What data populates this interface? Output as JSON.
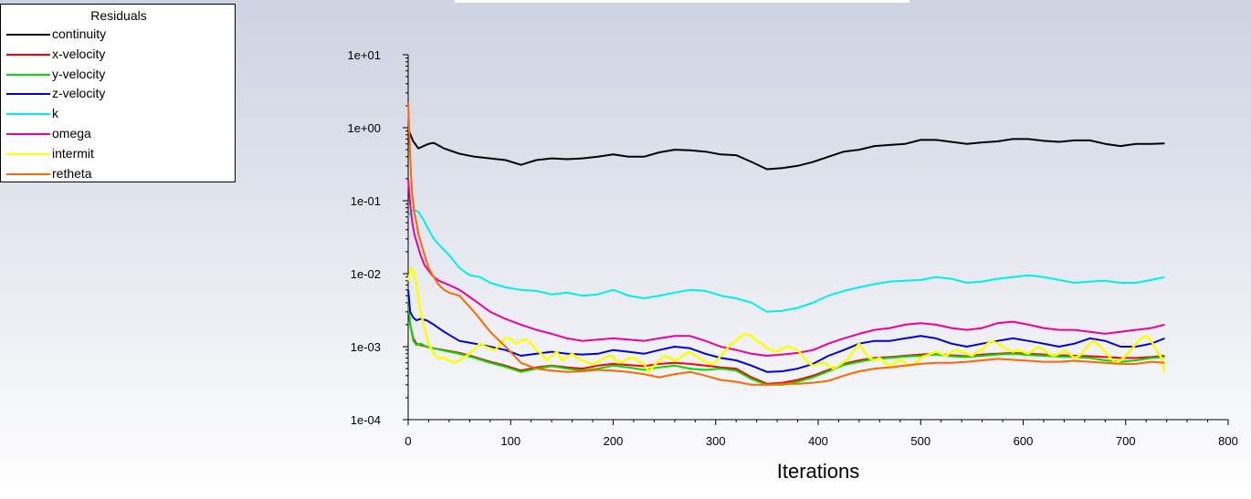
{
  "chart_data": {
    "type": "line",
    "title": "Residuals",
    "xlabel": "Iterations",
    "ylabel": "",
    "xlim": [
      0,
      800
    ],
    "ylim": [
      0.0001,
      10
    ],
    "yscale": "log",
    "x_ticks": [
      0,
      100,
      200,
      300,
      400,
      500,
      600,
      700,
      800
    ],
    "y_ticks": [
      {
        "value": 10,
        "label": "1e+01"
      },
      {
        "value": 1,
        "label": "1e+00"
      },
      {
        "value": 0.1,
        "label": "1e-01"
      },
      {
        "value": 0.01,
        "label": "1e-02"
      },
      {
        "value": 0.001,
        "label": "1e-03"
      },
      {
        "value": 0.0001,
        "label": "1e-04"
      }
    ],
    "legend_position": "top-left",
    "series": [
      {
        "name": "continuity",
        "color": "#000000",
        "x": [
          0,
          5,
          10,
          15,
          20,
          25,
          35,
          50,
          65,
          80,
          95,
          110,
          125,
          140,
          155,
          170,
          185,
          200,
          215,
          230,
          245,
          260,
          275,
          290,
          305,
          320,
          335,
          350,
          365,
          380,
          395,
          410,
          425,
          440,
          455,
          470,
          485,
          500,
          515,
          530,
          545,
          560,
          575,
          590,
          605,
          620,
          635,
          650,
          665,
          680,
          695,
          710,
          725,
          738
        ],
        "y": [
          0.95,
          0.65,
          0.52,
          0.56,
          0.6,
          0.62,
          0.52,
          0.44,
          0.4,
          0.38,
          0.36,
          0.31,
          0.36,
          0.38,
          0.37,
          0.38,
          0.4,
          0.43,
          0.4,
          0.4,
          0.46,
          0.5,
          0.49,
          0.47,
          0.43,
          0.42,
          0.34,
          0.27,
          0.28,
          0.3,
          0.34,
          0.4,
          0.47,
          0.5,
          0.56,
          0.58,
          0.6,
          0.68,
          0.68,
          0.64,
          0.6,
          0.63,
          0.65,
          0.7,
          0.7,
          0.66,
          0.64,
          0.67,
          0.67,
          0.6,
          0.56,
          0.6,
          0.6,
          0.61
        ]
      },
      {
        "name": "x-velocity",
        "color": "#ff0000",
        "x": [
          0,
          2,
          5,
          8,
          12,
          18,
          25,
          35,
          50,
          65,
          80,
          95,
          110,
          125,
          140,
          155,
          170,
          185,
          200,
          215,
          230,
          245,
          260,
          275,
          290,
          305,
          320,
          335,
          350,
          365,
          380,
          395,
          410,
          425,
          440,
          455,
          470,
          485,
          500,
          515,
          530,
          545,
          560,
          575,
          590,
          605,
          620,
          635,
          650,
          665,
          680,
          695,
          710,
          725,
          738
        ],
        "y": [
          0.004,
          0.002,
          0.0013,
          0.0011,
          0.00105,
          0.001,
          0.00095,
          0.0009,
          0.00082,
          0.00072,
          0.00062,
          0.00055,
          0.00047,
          0.00052,
          0.00055,
          0.00052,
          0.0005,
          0.00055,
          0.00058,
          0.00056,
          0.00054,
          0.00058,
          0.0006,
          0.00058,
          0.00055,
          0.00052,
          0.0005,
          0.00038,
          0.00031,
          0.00032,
          0.00035,
          0.0004,
          0.00048,
          0.00058,
          0.00065,
          0.0007,
          0.00072,
          0.00075,
          0.00078,
          0.0008,
          0.00076,
          0.00074,
          0.00078,
          0.0008,
          0.00082,
          0.0008,
          0.00078,
          0.00076,
          0.00075,
          0.00074,
          0.00072,
          0.0007,
          0.0007,
          0.00072,
          0.00075
        ]
      },
      {
        "name": "y-velocity",
        "color": "#00dd00",
        "x": [
          0,
          2,
          5,
          8,
          12,
          18,
          25,
          35,
          50,
          65,
          80,
          95,
          110,
          125,
          140,
          155,
          170,
          185,
          200,
          215,
          230,
          245,
          260,
          275,
          290,
          305,
          320,
          335,
          350,
          365,
          380,
          395,
          410,
          425,
          440,
          455,
          470,
          485,
          500,
          515,
          530,
          545,
          560,
          575,
          590,
          605,
          620,
          635,
          650,
          665,
          680,
          695,
          710,
          725,
          738
        ],
        "y": [
          0.005,
          0.002,
          0.0012,
          0.00105,
          0.0011,
          0.001,
          0.00095,
          0.00088,
          0.0008,
          0.0007,
          0.0006,
          0.00053,
          0.00045,
          0.0005,
          0.00054,
          0.0005,
          0.00047,
          0.0005,
          0.00055,
          0.00052,
          0.00048,
          0.00052,
          0.00055,
          0.0005,
          0.00048,
          0.0005,
          0.00047,
          0.00036,
          0.0003,
          0.0003,
          0.00033,
          0.00038,
          0.00046,
          0.00056,
          0.00062,
          0.00068,
          0.0007,
          0.00073,
          0.00075,
          0.00078,
          0.00074,
          0.00072,
          0.00075,
          0.00078,
          0.0008,
          0.00077,
          0.00075,
          0.00073,
          0.00072,
          0.0007,
          0.00065,
          0.00062,
          0.00065,
          0.0007,
          0.00072
        ]
      },
      {
        "name": "z-velocity",
        "color": "#0000dd",
        "x": [
          0,
          2,
          5,
          8,
          12,
          18,
          25,
          35,
          50,
          65,
          80,
          95,
          110,
          125,
          140,
          155,
          170,
          185,
          200,
          215,
          230,
          245,
          260,
          275,
          290,
          305,
          320,
          335,
          350,
          365,
          380,
          395,
          410,
          425,
          440,
          455,
          470,
          485,
          500,
          515,
          530,
          545,
          560,
          575,
          590,
          605,
          620,
          635,
          650,
          665,
          680,
          695,
          710,
          725,
          738
        ],
        "y": [
          0.006,
          0.003,
          0.0025,
          0.0023,
          0.0024,
          0.0023,
          0.002,
          0.0016,
          0.0012,
          0.0011,
          0.001,
          0.0009,
          0.00075,
          0.0008,
          0.00085,
          0.0008,
          0.00078,
          0.0008,
          0.0009,
          0.00085,
          0.0008,
          0.0009,
          0.001,
          0.00095,
          0.0008,
          0.0007,
          0.00065,
          0.00055,
          0.00045,
          0.00046,
          0.0005,
          0.00058,
          0.00075,
          0.0009,
          0.0011,
          0.0012,
          0.0012,
          0.0013,
          0.0014,
          0.0013,
          0.0011,
          0.001,
          0.0011,
          0.0012,
          0.0013,
          0.0012,
          0.0011,
          0.001,
          0.0011,
          0.0013,
          0.0012,
          0.001,
          0.001,
          0.0011,
          0.0013
        ]
      },
      {
        "name": "k",
        "color": "#00eeee",
        "x": [
          0,
          3,
          6,
          10,
          15,
          20,
          25,
          30,
          40,
          50,
          60,
          70,
          80,
          95,
          110,
          125,
          140,
          155,
          170,
          185,
          200,
          215,
          230,
          245,
          260,
          275,
          290,
          305,
          320,
          335,
          350,
          365,
          380,
          395,
          410,
          425,
          440,
          455,
          470,
          485,
          500,
          515,
          530,
          545,
          560,
          575,
          590,
          605,
          620,
          635,
          650,
          665,
          680,
          695,
          710,
          725,
          738
        ],
        "y": [
          0.06,
          0.07,
          0.075,
          0.07,
          0.055,
          0.04,
          0.03,
          0.025,
          0.018,
          0.012,
          0.0095,
          0.009,
          0.0075,
          0.0065,
          0.006,
          0.0058,
          0.0052,
          0.0055,
          0.005,
          0.0052,
          0.006,
          0.005,
          0.0046,
          0.005,
          0.0055,
          0.006,
          0.0058,
          0.005,
          0.0046,
          0.004,
          0.003,
          0.0031,
          0.0034,
          0.004,
          0.005,
          0.0058,
          0.0065,
          0.0072,
          0.0078,
          0.008,
          0.0082,
          0.009,
          0.0085,
          0.0075,
          0.0078,
          0.0085,
          0.009,
          0.0095,
          0.009,
          0.0082,
          0.0075,
          0.0078,
          0.008,
          0.0075,
          0.0075,
          0.0082,
          0.009
        ]
      },
      {
        "name": "omega",
        "color": "#ee0099",
        "x": [
          0,
          2,
          4,
          6,
          9,
          12,
          16,
          20,
          25,
          30,
          40,
          50,
          60,
          70,
          80,
          95,
          110,
          125,
          140,
          155,
          170,
          185,
          200,
          215,
          230,
          245,
          260,
          275,
          290,
          305,
          320,
          335,
          350,
          365,
          380,
          395,
          410,
          425,
          440,
          455,
          470,
          485,
          500,
          515,
          530,
          545,
          560,
          575,
          590,
          605,
          620,
          635,
          650,
          665,
          680,
          695,
          710,
          725,
          738
        ],
        "y": [
          0.2,
          0.09,
          0.05,
          0.035,
          0.025,
          0.018,
          0.013,
          0.011,
          0.009,
          0.008,
          0.007,
          0.006,
          0.0048,
          0.0038,
          0.003,
          0.0024,
          0.002,
          0.0017,
          0.0015,
          0.0013,
          0.0012,
          0.00125,
          0.0013,
          0.00125,
          0.0012,
          0.0013,
          0.0014,
          0.0014,
          0.0012,
          0.001,
          0.0009,
          0.0008,
          0.00075,
          0.00078,
          0.00082,
          0.0009,
          0.0011,
          0.0013,
          0.0015,
          0.0017,
          0.0018,
          0.002,
          0.0021,
          0.002,
          0.0018,
          0.0017,
          0.0018,
          0.0021,
          0.0022,
          0.002,
          0.0018,
          0.0017,
          0.0017,
          0.0016,
          0.0015,
          0.0016,
          0.0017,
          0.0018,
          0.002
        ]
      },
      {
        "name": "intermit",
        "color": "#ffff00",
        "x": [
          0,
          3,
          6,
          9,
          12,
          16,
          20,
          25,
          30,
          35,
          40,
          45,
          50,
          55,
          60,
          65,
          70,
          75,
          80,
          85,
          90,
          95,
          100,
          105,
          110,
          115,
          120,
          125,
          130,
          135,
          140,
          145,
          150,
          155,
          160,
          165,
          170,
          175,
          180,
          185,
          190,
          195,
          200,
          205,
          210,
          215,
          220,
          225,
          230,
          235,
          240,
          245,
          250,
          255,
          260,
          265,
          270,
          275,
          280,
          285,
          290,
          295,
          300,
          305,
          310,
          315,
          320,
          325,
          330,
          335,
          340,
          345,
          350,
          355,
          360,
          365,
          370,
          375,
          380,
          385,
          390,
          395,
          400,
          405,
          410,
          415,
          420,
          425,
          430,
          435,
          440,
          445,
          450,
          455,
          460,
          465,
          470,
          475,
          480,
          485,
          490,
          495,
          500,
          505,
          510,
          515,
          520,
          525,
          530,
          535,
          540,
          545,
          550,
          555,
          560,
          565,
          570,
          575,
          580,
          585,
          590,
          595,
          600,
          605,
          610,
          615,
          620,
          625,
          630,
          635,
          640,
          645,
          650,
          655,
          660,
          665,
          670,
          675,
          680,
          685,
          690,
          695,
          700,
          705,
          710,
          715,
          720,
          725,
          730,
          735,
          738
        ],
        "y": [
          0.008,
          0.012,
          0.01,
          0.006,
          0.003,
          0.0018,
          0.0011,
          0.0008,
          0.0007,
          0.0007,
          0.00065,
          0.0006,
          0.00065,
          0.00072,
          0.0008,
          0.00095,
          0.0011,
          0.001,
          0.00095,
          0.0009,
          0.0011,
          0.0013,
          0.0013,
          0.0011,
          0.0012,
          0.00125,
          0.0011,
          0.0009,
          0.0008,
          0.00065,
          0.00075,
          0.00085,
          0.00065,
          0.00072,
          0.0008,
          0.0007,
          0.00065,
          0.0006,
          0.00058,
          0.00062,
          0.00068,
          0.00075,
          0.00072,
          0.0006,
          0.00062,
          0.0007,
          0.0007,
          0.00062,
          0.00058,
          0.00045,
          0.00055,
          0.00065,
          0.00075,
          0.0007,
          0.00065,
          0.0007,
          0.0008,
          0.00085,
          0.00075,
          0.00068,
          0.00062,
          0.00058,
          0.00062,
          0.00075,
          0.0009,
          0.0011,
          0.0012,
          0.0014,
          0.0015,
          0.0014,
          0.0012,
          0.0011,
          0.00095,
          0.0009,
          0.00085,
          0.00095,
          0.001,
          0.00095,
          0.0009,
          0.00075,
          0.0006,
          0.00055,
          0.00058,
          0.00062,
          0.00055,
          0.0005,
          0.00055,
          0.00062,
          0.0007,
          0.0009,
          0.0011,
          0.00085,
          0.0007,
          0.00065,
          0.0007,
          0.0006,
          0.00055,
          0.0006,
          0.00065,
          0.0006,
          0.00055,
          0.0006,
          0.0007,
          0.00075,
          0.0008,
          0.00085,
          0.0008,
          0.00075,
          0.00085,
          0.0009,
          0.00085,
          0.0008,
          0.00075,
          0.00085,
          0.0009,
          0.0011,
          0.0012,
          0.0011,
          0.001,
          0.0009,
          0.00085,
          0.0009,
          0.00085,
          0.0008,
          0.0009,
          0.001,
          0.0009,
          0.0008,
          0.00075,
          0.0008,
          0.0009,
          0.0008,
          0.0007,
          0.00075,
          0.0009,
          0.0011,
          0.0012,
          0.001,
          0.00085,
          0.0007,
          0.0006,
          0.00065,
          0.00075,
          0.0009,
          0.0011,
          0.0013,
          0.0014,
          0.0012,
          0.0009,
          0.0007,
          0.00045
        ]
      },
      {
        "name": "retheta",
        "color": "#ff6600",
        "x": [
          0,
          1,
          2,
          3,
          4,
          6,
          8,
          10,
          13,
          16,
          20,
          25,
          30,
          35,
          40,
          50,
          60,
          70,
          80,
          95,
          110,
          125,
          140,
          155,
          170,
          185,
          200,
          215,
          230,
          245,
          260,
          275,
          290,
          305,
          320,
          335,
          350,
          365,
          380,
          395,
          410,
          425,
          440,
          455,
          470,
          485,
          500,
          515,
          530,
          545,
          560,
          575,
          590,
          605,
          620,
          635,
          650,
          665,
          680,
          695,
          710,
          725,
          738
        ],
        "y": [
          2.2,
          0.9,
          0.4,
          0.2,
          0.12,
          0.07,
          0.05,
          0.035,
          0.025,
          0.018,
          0.012,
          0.009,
          0.007,
          0.006,
          0.0055,
          0.005,
          0.0035,
          0.0024,
          0.0016,
          0.001,
          0.0006,
          0.0005,
          0.00047,
          0.00045,
          0.00046,
          0.00048,
          0.00047,
          0.00045,
          0.00042,
          0.00038,
          0.00042,
          0.00045,
          0.0004,
          0.00035,
          0.00033,
          0.0003,
          0.0003,
          0.00031,
          0.00031,
          0.00032,
          0.00034,
          0.0004,
          0.00046,
          0.0005,
          0.00052,
          0.00055,
          0.00058,
          0.0006,
          0.0006,
          0.00062,
          0.00065,
          0.00068,
          0.00066,
          0.00064,
          0.00062,
          0.00062,
          0.00064,
          0.00062,
          0.0006,
          0.00058,
          0.00058,
          0.00062,
          0.0006
        ]
      }
    ]
  }
}
